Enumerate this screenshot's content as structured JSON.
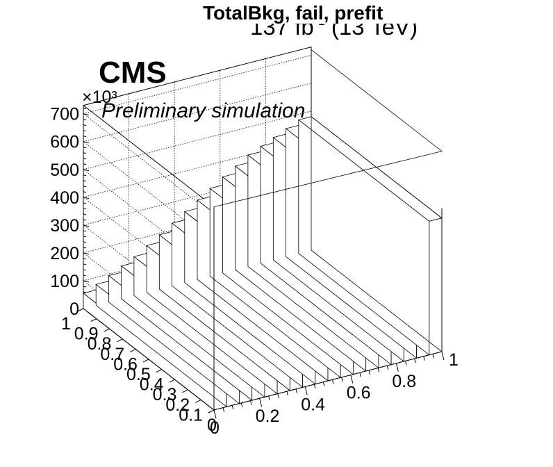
{
  "header": {
    "title": "TotalBkg, fail, prefit",
    "lumi_main": "137 fb",
    "lumi_sup": "-1",
    "lumi_energy": " (13 TeV)",
    "experiment": "CMS",
    "subtitle": "Preliminary simulation"
  },
  "chart_data": {
    "type": "lego",
    "title": "TotalBkg, fail, prefit",
    "z_multiplier": "×10³",
    "z_ticks": [
      0,
      100,
      200,
      300,
      400,
      500,
      600,
      700
    ],
    "z_range": [
      0,
      730
    ],
    "x_ticks": [
      "0",
      "0.2",
      "0.4",
      "0.6",
      "0.8",
      "1"
    ],
    "x_range": [
      0,
      1
    ],
    "y_ticks": [
      "0",
      "0.1",
      "0.2",
      "0.3",
      "0.4",
      "0.5",
      "0.6",
      "0.7",
      "0.8",
      "0.9",
      "1"
    ],
    "y_range": [
      0,
      1
    ],
    "x_bins": 18,
    "y_bins": 1,
    "values": [
      55,
      75,
      95,
      118,
      140,
      168,
      195,
      225,
      255,
      285,
      315,
      345,
      372,
      400,
      420,
      440,
      460,
      480
    ],
    "grid": true
  }
}
